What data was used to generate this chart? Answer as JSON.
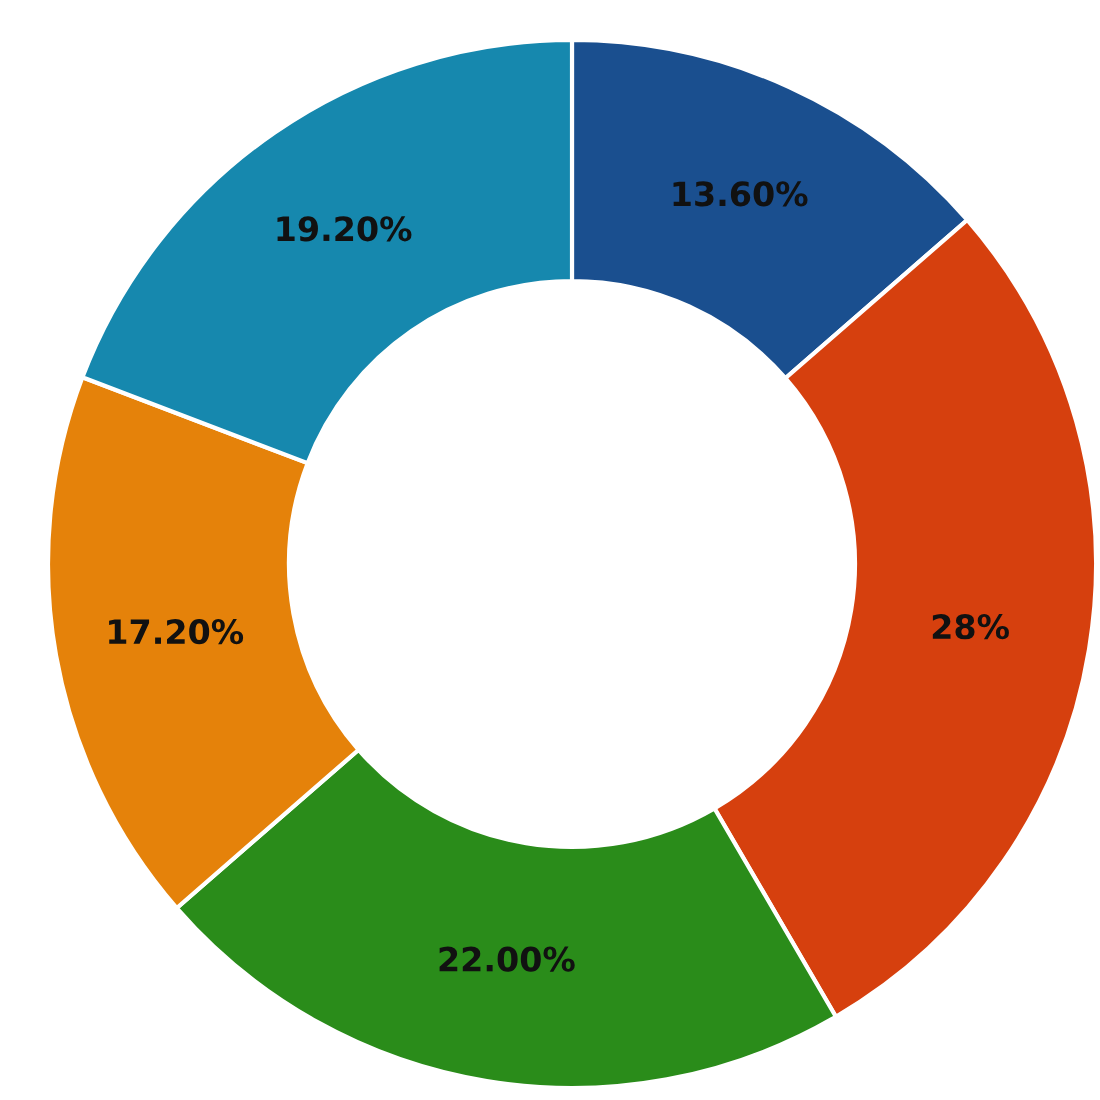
{
  "chart_data": {
    "type": "donut",
    "categories": [
      null,
      null,
      null,
      null,
      null
    ],
    "values": [
      13.6,
      28,
      22.0,
      17.2,
      19.2
    ],
    "value_labels": [
      "13.60%",
      "28%",
      "22.00%",
      "17.20%",
      "19.20%"
    ],
    "colors": [
      "#1a4f8f",
      "#d6400e",
      "#2a8c1a",
      "#e5820a",
      "#1688ae"
    ]
  }
}
